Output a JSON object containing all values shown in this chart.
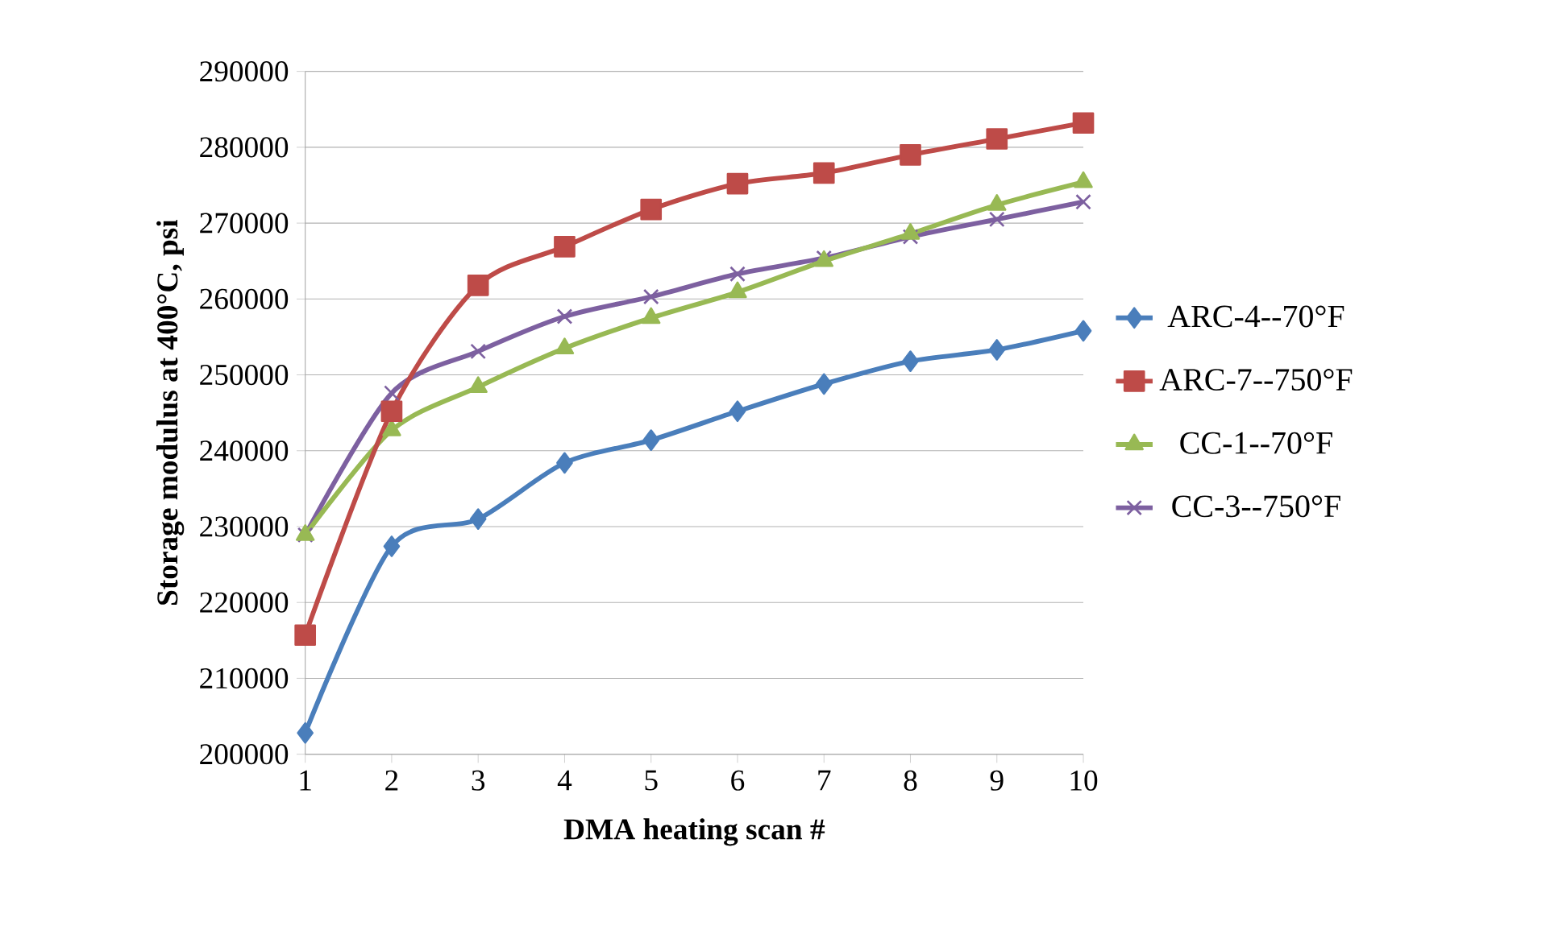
{
  "chart_data": {
    "type": "line",
    "xlabel": "DMA heating scan #",
    "ylabel": "Storage modulus at 400°C, psi",
    "x": [
      1,
      2,
      3,
      4,
      5,
      6,
      7,
      8,
      9,
      10
    ],
    "series": [
      {
        "name": "ARC-4--70°F",
        "color": "#4a7ebb",
        "marker": "diamond",
        "values": [
          202800,
          227400,
          231000,
          238400,
          241400,
          245200,
          248800,
          251800,
          253300,
          255800
        ]
      },
      {
        "name": "ARC-7--750°F",
        "color": "#be4b48",
        "marker": "square",
        "values": [
          215700,
          245200,
          261800,
          266900,
          271800,
          275200,
          276600,
          279000,
          281100,
          283200
        ]
      },
      {
        "name": "CC-1--70°F",
        "color": "#98b954",
        "marker": "triangle",
        "values": [
          228900,
          242700,
          248400,
          253500,
          257500,
          260900,
          265000,
          268600,
          272400,
          275400
        ]
      },
      {
        "name": "CC-3--750°F",
        "color": "#7d60a0",
        "marker": "cross",
        "values": [
          228900,
          247600,
          253100,
          257700,
          260300,
          263300,
          265400,
          268200,
          270500,
          272800
        ]
      }
    ],
    "xlim": [
      1,
      10
    ],
    "xticks": [
      1,
      2,
      3,
      4,
      5,
      6,
      7,
      8,
      9,
      10
    ],
    "ylim": [
      200000,
      290000
    ],
    "yticks": [
      200000,
      210000,
      220000,
      230000,
      240000,
      250000,
      260000,
      270000,
      280000,
      290000
    ],
    "grid": "y",
    "legend": "right",
    "line_style": "solid"
  }
}
